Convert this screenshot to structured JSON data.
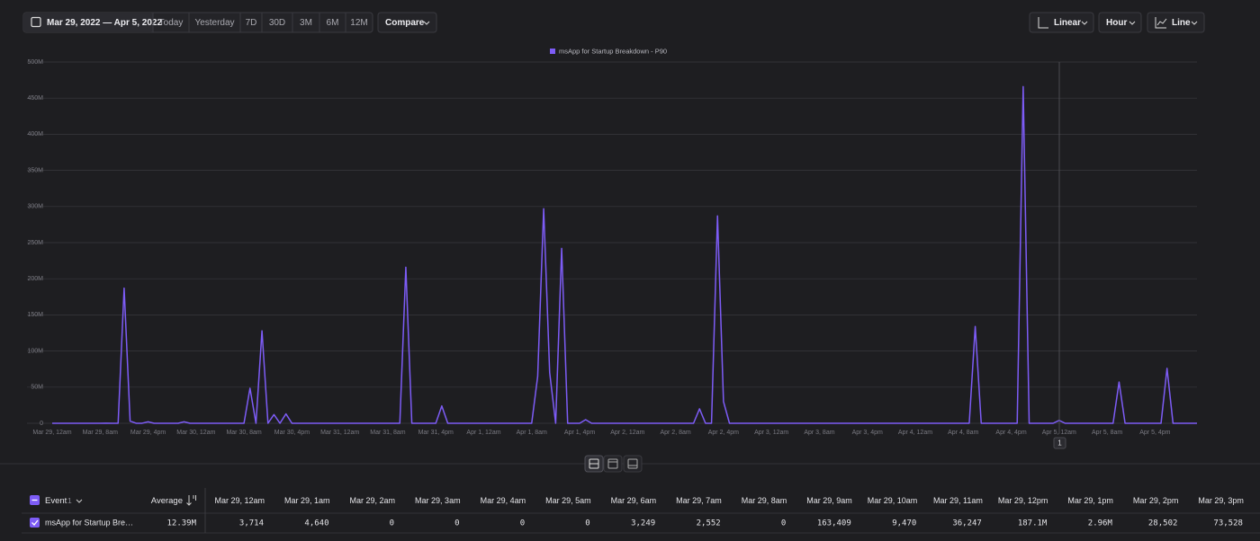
{
  "toolbar": {
    "date_range": "Mar 29, 2022 — Apr 5, 2022",
    "presets": [
      "Today",
      "Yesterday",
      "7D",
      "30D",
      "3M",
      "6M",
      "12M"
    ],
    "compare": "Compare",
    "scale": "Linear",
    "interval": "Hour",
    "chart_kind": "Line"
  },
  "chart_data": {
    "type": "line",
    "series": [
      {
        "name": "msApp for Startup Breakdown - P90",
        "color": "#7d5cf6",
        "values": [
          3714,
          4640,
          0,
          0,
          0,
          0,
          3249,
          2552,
          0,
          163409,
          9470,
          36247,
          187100000,
          2960000,
          28502,
          73528,
          2000000,
          0,
          0,
          0,
          0,
          0,
          2000000,
          0,
          0,
          0,
          0,
          0,
          0,
          0,
          0,
          0,
          0,
          48500000,
          0,
          128000000,
          0,
          12000000,
          0,
          13000000,
          0,
          0,
          0,
          0,
          0,
          0,
          0,
          0,
          0,
          0,
          0,
          0,
          0,
          0,
          0,
          0,
          0,
          0,
          0,
          216000000,
          0,
          0,
          0,
          0,
          0,
          24000000,
          0,
          0,
          0,
          0,
          0,
          0,
          0,
          0,
          0,
          0,
          0,
          0,
          0,
          0,
          0,
          65000000,
          297000000,
          70000000,
          0,
          242000000,
          0,
          0,
          0,
          5000000,
          0,
          0,
          0,
          0,
          0,
          0,
          0,
          0,
          0,
          0,
          0,
          0,
          0,
          0,
          0,
          0,
          0,
          0,
          20000000,
          0,
          0,
          287000000,
          30000000,
          0,
          0,
          0,
          0,
          0,
          0,
          0,
          0,
          0,
          0,
          0,
          0,
          0,
          0,
          0,
          0,
          0,
          0,
          0,
          0,
          0,
          0,
          0,
          0,
          0,
          0,
          0,
          0,
          0,
          0,
          0,
          0,
          0,
          0,
          0,
          0,
          0,
          0,
          0,
          0,
          0,
          134000000,
          0,
          0,
          0,
          0,
          0,
          0,
          0,
          466000000,
          0,
          0,
          0,
          0,
          0,
          4000000,
          0,
          0,
          0,
          0,
          0,
          0,
          0,
          0,
          0,
          57000000,
          0,
          0,
          0,
          0,
          0,
          0,
          0,
          76000000,
          0,
          0,
          0,
          0,
          0
        ]
      }
    ],
    "categories": [
      "Mar 29, 12am",
      null,
      null,
      null,
      null,
      null,
      null,
      null,
      "Mar 29, 8am",
      null,
      null,
      null,
      null,
      null,
      null,
      null,
      "Mar 29, 4pm",
      null,
      null,
      null,
      null,
      null,
      null,
      null,
      "Mar 30, 12am",
      null,
      null,
      null,
      null,
      null,
      null,
      null,
      "Mar 30, 8am",
      null,
      null,
      null,
      null,
      null,
      null,
      null,
      "Mar 30, 4pm",
      null,
      null,
      null,
      null,
      null,
      null,
      null,
      "Mar 31, 12am",
      null,
      null,
      null,
      null,
      null,
      null,
      null,
      "Mar 31, 8am",
      null,
      null,
      null,
      null,
      null,
      null,
      null,
      "Mar 31, 4pm",
      null,
      null,
      null,
      null,
      null,
      null,
      null,
      "Apr 1, 12am",
      null,
      null,
      null,
      null,
      null,
      null,
      null,
      "Apr 1, 8am",
      null,
      null,
      null,
      null,
      null,
      null,
      null,
      "Apr 1, 4pm",
      null,
      null,
      null,
      null,
      null,
      null,
      null,
      "Apr 2, 12am",
      null,
      null,
      null,
      null,
      null,
      null,
      null,
      "Apr 2, 8am",
      null,
      null,
      null,
      null,
      null,
      null,
      null,
      "Apr 2, 4pm",
      null,
      null,
      null,
      null,
      null,
      null,
      null,
      "Apr 3, 12am",
      null,
      null,
      null,
      null,
      null,
      null,
      null,
      "Apr 3, 8am",
      null,
      null,
      null,
      null,
      null,
      null,
      null,
      "Apr 3, 4pm",
      null,
      null,
      null,
      null,
      null,
      null,
      null,
      "Apr 4, 12am",
      null,
      null,
      null,
      null,
      null,
      null,
      null,
      "Apr 4, 8am",
      null,
      null,
      null,
      null,
      null,
      null,
      null,
      "Apr 4, 4pm",
      null,
      null,
      null,
      null,
      null,
      null,
      null,
      "Apr 5, 12am",
      null,
      null,
      null,
      null,
      null,
      null,
      null,
      "Apr 5, 8am",
      null,
      null,
      null,
      null,
      null,
      null,
      null,
      "Apr 5, 4pm",
      null,
      null,
      null,
      null,
      null,
      null,
      null
    ],
    "ylim": [
      0,
      500000000
    ],
    "yticks": [
      0,
      {
        "value": 50000000,
        "label": "50M"
      },
      {
        "value": 100000000,
        "label": "100M"
      },
      {
        "value": 150000000,
        "label": "150M"
      },
      {
        "value": 200000000,
        "label": "200M"
      },
      {
        "value": 250000000,
        "label": "250M"
      },
      {
        "value": 300000000,
        "label": "300M"
      },
      {
        "value": 350000000,
        "label": "350M"
      },
      {
        "value": 400000000,
        "label": "400M"
      },
      {
        "value": 450000000,
        "label": "450M"
      },
      {
        "value": 500000000,
        "label": "500M"
      }
    ],
    "grid": true,
    "legend": "top",
    "crosshair_label": "1"
  },
  "table": {
    "event_header": "Event",
    "event_count": "1",
    "average_header": "Average",
    "columns": [
      "Mar 29, 12am",
      "Mar 29, 1am",
      "Mar 29, 2am",
      "Mar 29, 3am",
      "Mar 29, 4am",
      "Mar 29, 5am",
      "Mar 29, 6am",
      "Mar 29, 7am",
      "Mar 29, 8am",
      "Mar 29, 9am",
      "Mar 29, 10am",
      "Mar 29, 11am",
      "Mar 29, 12pm",
      "Mar 29, 1pm",
      "Mar 29, 2pm",
      "Mar 29, 3pm"
    ],
    "rows": [
      {
        "name": "msApp for Startup Bre…",
        "average": "12.39M",
        "cells": [
          "3,714",
          "4,640",
          "0",
          "0",
          "0",
          "0",
          "3,249",
          "2,552",
          "0",
          "163,409",
          "9,470",
          "36,247",
          "187.1M",
          "2.96M",
          "28,502",
          "73,528"
        ]
      }
    ]
  }
}
